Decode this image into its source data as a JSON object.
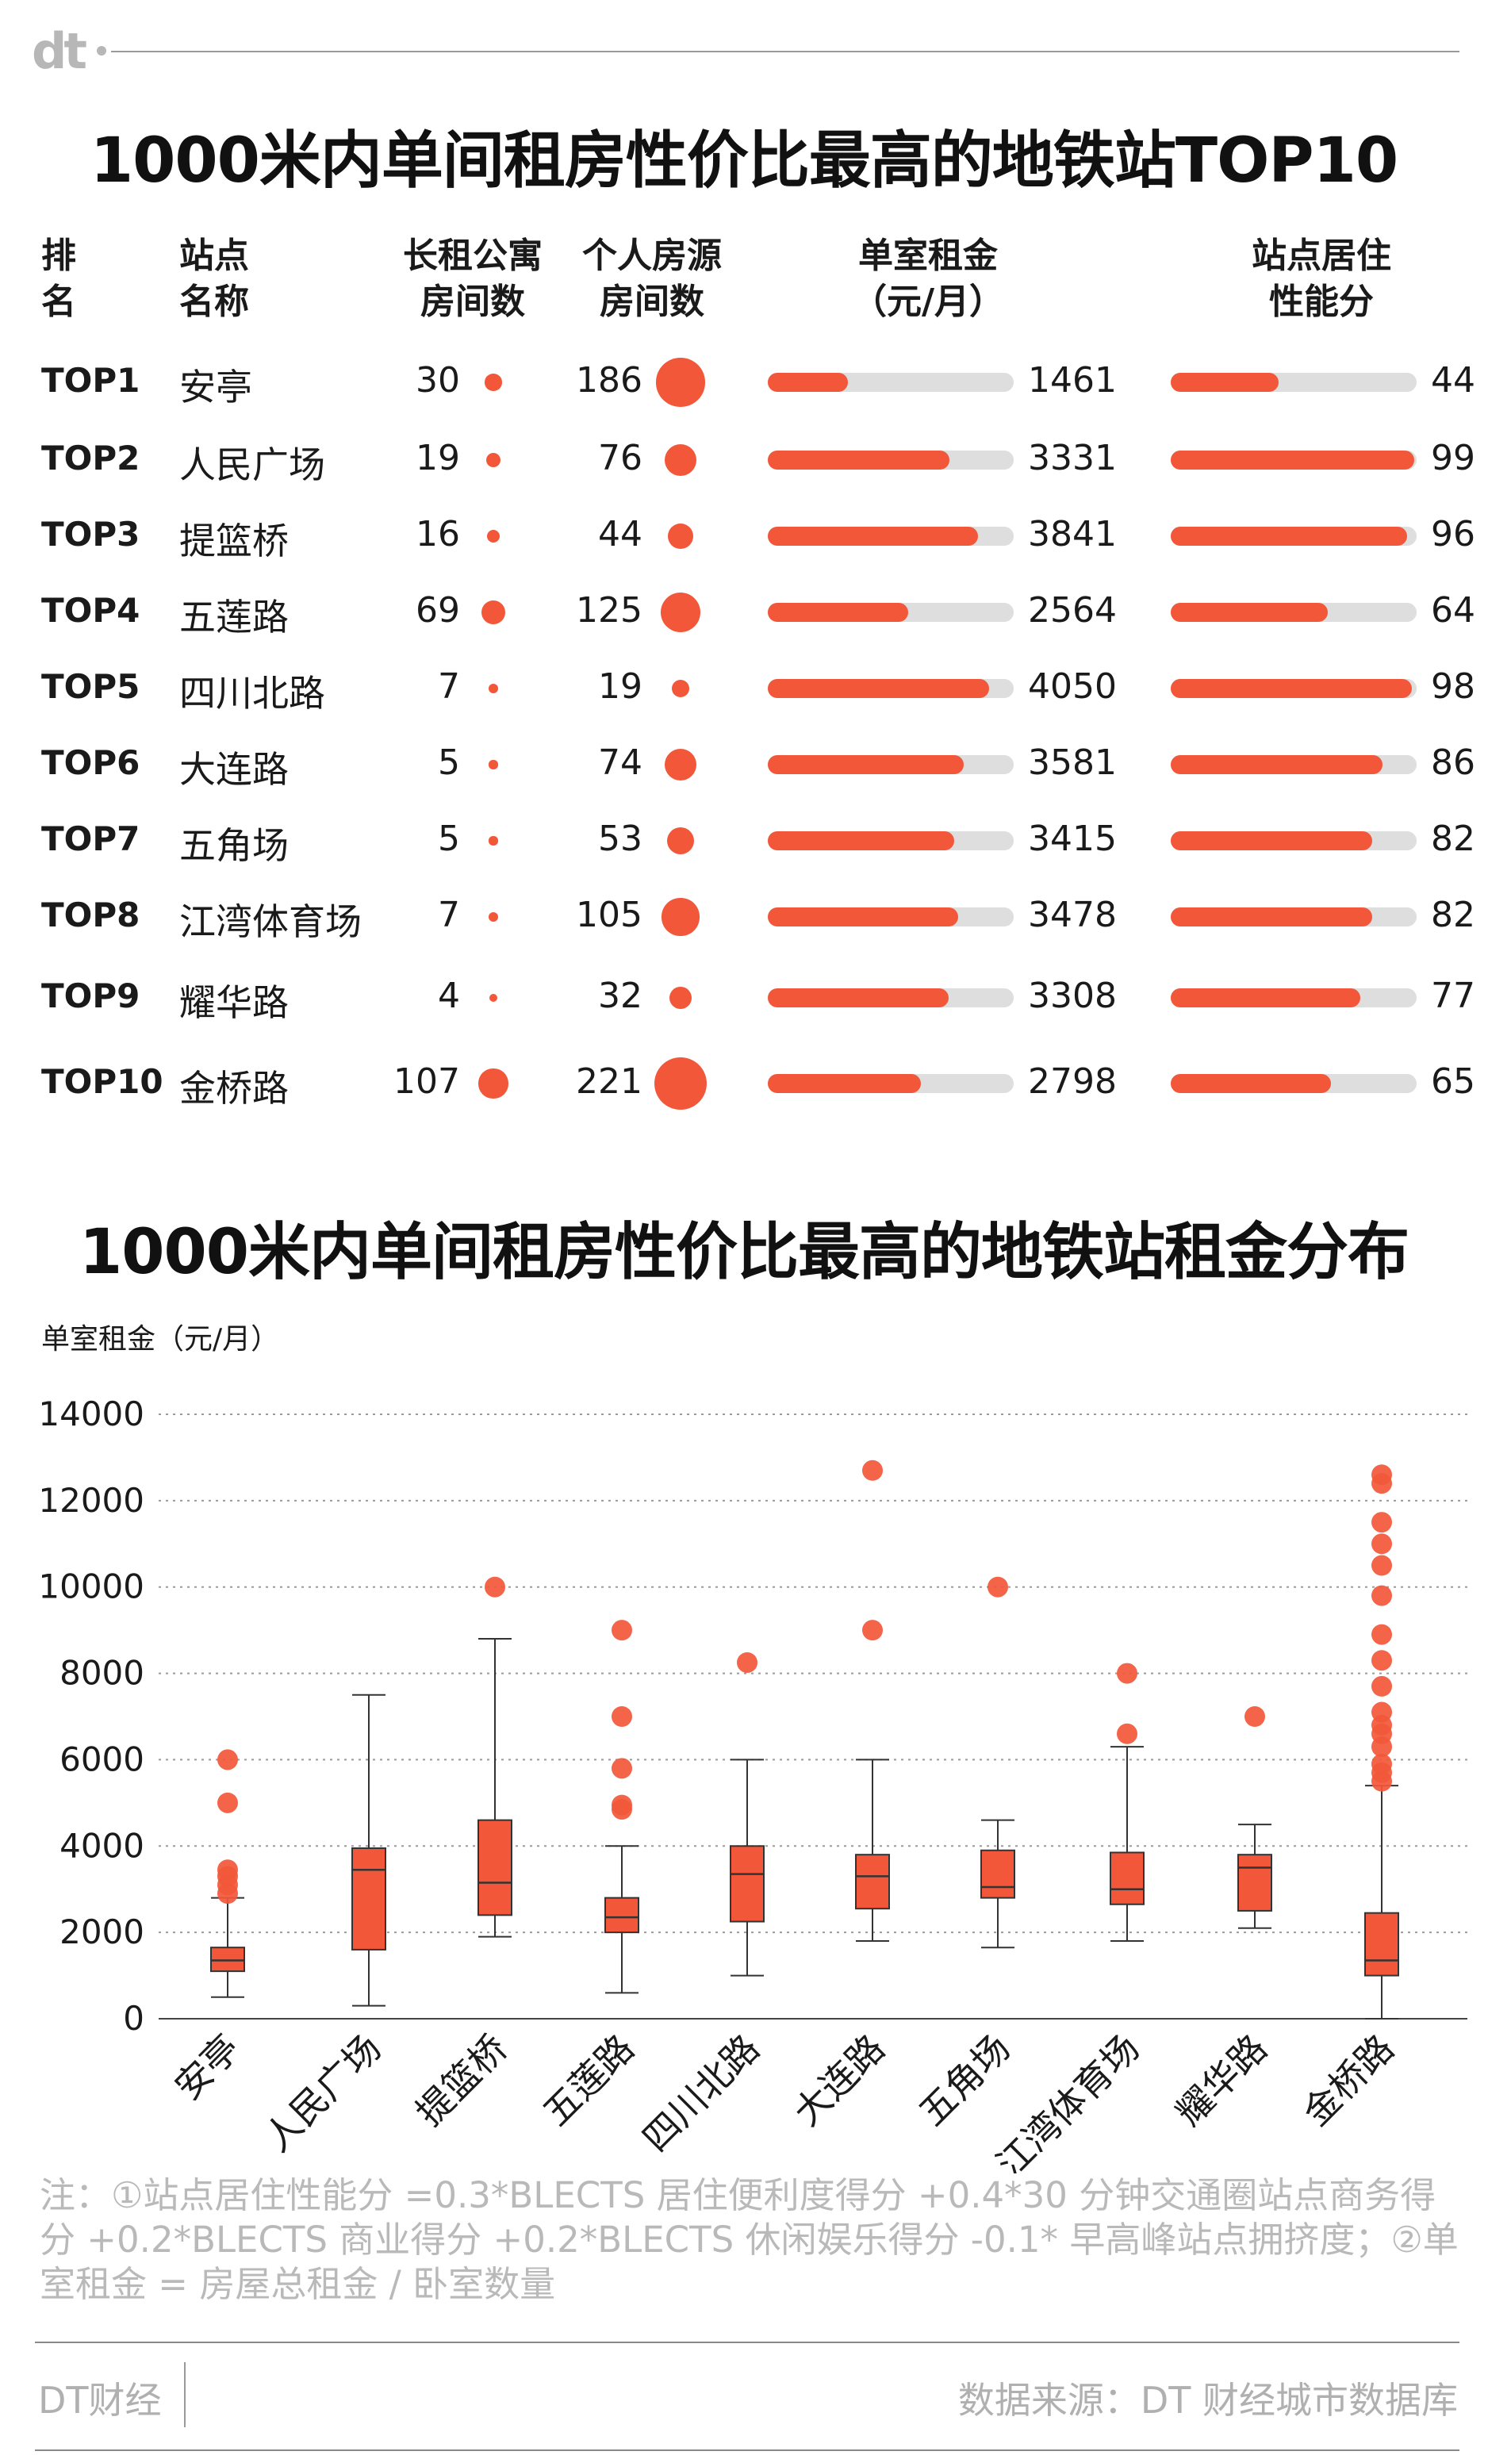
{
  "brand": {
    "logo_text": "dt"
  },
  "table": {
    "title": "1000米内单间租房性价比最高的地铁站TOP10",
    "headers": {
      "rank": [
        "排",
        "名"
      ],
      "station": [
        "站点",
        "名称"
      ],
      "apartments": [
        "长租公寓",
        "房间数"
      ],
      "personal": [
        "个人房源",
        "房间数"
      ],
      "rent": [
        "单室租金",
        "（元/月）"
      ],
      "score": [
        "站点居住",
        "性能分"
      ]
    },
    "rows": [
      {
        "rank": "TOP1",
        "station": "安亭",
        "apartments": "30",
        "personal": "186",
        "rent": "1461",
        "score": "44"
      },
      {
        "rank": "TOP2",
        "station": "人民广场",
        "apartments": "19",
        "personal": "76",
        "rent": "3331",
        "score": "99"
      },
      {
        "rank": "TOP3",
        "station": "提篮桥",
        "apartments": "16",
        "personal": "44",
        "rent": "3841",
        "score": "96"
      },
      {
        "rank": "TOP4",
        "station": "五莲路",
        "apartments": "69",
        "personal": "125",
        "rent": "2564",
        "score": "64"
      },
      {
        "rank": "TOP5",
        "station": "四川北路",
        "apartments": "7",
        "personal": "19",
        "rent": "4050",
        "score": "98"
      },
      {
        "rank": "TOP6",
        "station": "大连路",
        "apartments": "5",
        "personal": "74",
        "rent": "3581",
        "score": "86"
      },
      {
        "rank": "TOP7",
        "station": "五角场",
        "apartments": "5",
        "personal": "53",
        "rent": "3415",
        "score": "82"
      },
      {
        "rank": "TOP8",
        "station": "江湾体育场",
        "apartments": "7",
        "personal": "105",
        "rent": "3478",
        "score": "82"
      },
      {
        "rank": "TOP9",
        "station": "耀华路",
        "apartments": "4",
        "personal": "32",
        "rent": "3308",
        "score": "77"
      },
      {
        "rank": "TOP10",
        "station": "金桥路",
        "apartments": "107",
        "personal": "221",
        "rent": "2798",
        "score": "65"
      }
    ],
    "scale": {
      "rent_max": 4500,
      "score_max": 100
    }
  },
  "chart_data": {
    "type": "box",
    "title": "1000米内单间租房性价比最高的地铁站租金分布",
    "ylabel": "单室租金（元/月）",
    "ylim": [
      0,
      14000
    ],
    "yticks": [
      0,
      2000,
      4000,
      6000,
      8000,
      10000,
      12000,
      14000
    ],
    "ytick_labels": [
      "0",
      "2000",
      "4000",
      "6000",
      "8000",
      "10000",
      "12000",
      "14000"
    ],
    "grid": true,
    "categories": [
      "安亭",
      "人民广场",
      "提篮桥",
      "五莲路",
      "四川北路",
      "大连路",
      "五角场",
      "江湾体育场",
      "耀华路",
      "金桥路"
    ],
    "boxes": [
      {
        "min": 500,
        "q1": 1100,
        "median": 1350,
        "q3": 1650,
        "max": 2800,
        "outliers": [
          2900,
          3100,
          3300,
          3450,
          5000,
          6000
        ]
      },
      {
        "min": 300,
        "q1": 1600,
        "median": 3450,
        "q3": 3950,
        "max": 7500,
        "outliers": []
      },
      {
        "min": 1900,
        "q1": 2400,
        "median": 3150,
        "q3": 4600,
        "max": 8800,
        "outliers": [
          10000
        ]
      },
      {
        "min": 600,
        "q1": 2000,
        "median": 2350,
        "q3": 2800,
        "max": 4000,
        "outliers": [
          4850,
          4950,
          5800,
          7000,
          9000
        ]
      },
      {
        "min": 1000,
        "q1": 2250,
        "median": 3350,
        "q3": 4000,
        "max": 6000,
        "outliers": [
          8250
        ]
      },
      {
        "min": 1800,
        "q1": 2550,
        "median": 3300,
        "q3": 3800,
        "max": 6000,
        "outliers": [
          9000,
          12700
        ]
      },
      {
        "min": 1650,
        "q1": 2800,
        "median": 3050,
        "q3": 3900,
        "max": 4600,
        "outliers": [
          10000
        ]
      },
      {
        "min": 1800,
        "q1": 2650,
        "median": 3000,
        "q3": 3850,
        "max": 6300,
        "outliers": [
          6600,
          8000
        ]
      },
      {
        "min": 2100,
        "q1": 2500,
        "median": 3500,
        "q3": 3800,
        "max": 4500,
        "outliers": [
          7000
        ]
      },
      {
        "min": 0,
        "q1": 1000,
        "median": 1350,
        "q3": 2450,
        "max": 5400,
        "outliers": [
          5500,
          5700,
          5900,
          6300,
          6600,
          6800,
          7100,
          7700,
          8300,
          8900,
          9800,
          10500,
          11000,
          11500,
          12400,
          12600
        ]
      }
    ]
  },
  "note": "注：①站点居住性能分 =0.3*BLECTS 居住便利度得分 +0.4*30 分钟交通圈站点商务得分 +0.2*BLECTS 商业得分 +0.2*BLECTS 休闲娱乐得分 -0.1* 早高峰站点拥挤度；②单室租金 = 房屋总租金 / 卧室数量",
  "footer": {
    "brand": "DT财经",
    "source": "数据来源：DT 财经城市数据库"
  },
  "colors": {
    "accent": "#f2573a",
    "track": "#dedede",
    "grid": "#9a9a9a"
  }
}
